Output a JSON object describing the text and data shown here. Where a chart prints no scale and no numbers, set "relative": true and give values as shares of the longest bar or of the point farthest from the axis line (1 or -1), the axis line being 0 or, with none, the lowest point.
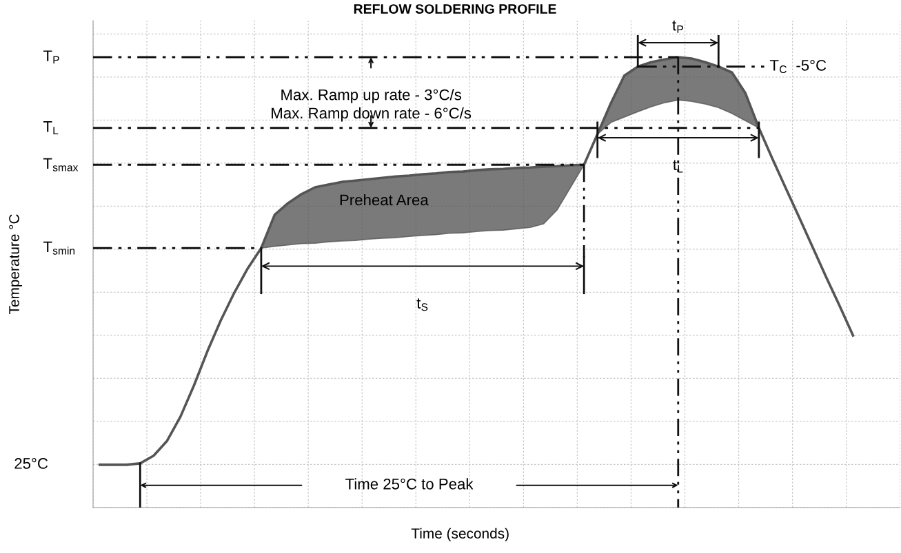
{
  "chart_data": {
    "type": "line",
    "title": "REFLOW SOLDERING PROFILE",
    "xlabel": "Time (seconds)",
    "ylabel": "Temperature °C",
    "relative": true,
    "grid": true,
    "categories": [
      null,
      null,
      null,
      null,
      null,
      null,
      null,
      null,
      null,
      null,
      null,
      null,
      null,
      null,
      null,
      null,
      null,
      null,
      null,
      null,
      null,
      null,
      null,
      null,
      null,
      null,
      null,
      null,
      null,
      null,
      null,
      null,
      null,
      null,
      null,
      null,
      null,
      null,
      null,
      null,
      null,
      null,
      null,
      null,
      null,
      null,
      null,
      null,
      null,
      null,
      null,
      null,
      null,
      null,
      null,
      null,
      null,
      null,
      null,
      null
    ],
    "series": [
      {
        "color": "#555555",
        "values": [
          0.095,
          0.095,
          0.095,
          0.098,
          0.115,
          0.148,
          0.202,
          0.271,
          0.347,
          0.416,
          0.477,
          0.531,
          0.576,
          0.65,
          0.676,
          0.696,
          0.711,
          0.717,
          0.723,
          0.726,
          0.729,
          0.732,
          0.735,
          0.737,
          0.74,
          0.742,
          0.745,
          0.746,
          0.749,
          0.751,
          0.752,
          0.754,
          0.755,
          0.757,
          0.758,
          0.76,
          0.761,
          0.829,
          0.898,
          0.959,
          0.979,
          0.989,
          0.995,
          1.0,
          0.997,
          0.989,
          0.979,
          0.966,
          0.92,
          0.843,
          0.775,
          0.709,
          0.644,
          0.578,
          0.512,
          0.448,
          0.382,
          null,
          null,
          null
        ],
        "lower": [
          null,
          null,
          null,
          null,
          null,
          null,
          null,
          null,
          null,
          null,
          null,
          null,
          0.576,
          0.58,
          0.583,
          0.586,
          0.587,
          0.59,
          0.592,
          0.593,
          0.596,
          0.598,
          0.599,
          0.602,
          0.604,
          0.606,
          0.609,
          0.61,
          0.613,
          0.615,
          0.616,
          0.619,
          0.622,
          0.63,
          0.661,
          0.711,
          0.761,
          0.829,
          0.855,
          0.867,
          0.879,
          0.89,
          0.899,
          0.905,
          0.902,
          0.896,
          0.888,
          0.875,
          0.859,
          0.843,
          null,
          null,
          null,
          null,
          null,
          null,
          null,
          null,
          null,
          null
        ],
        "upper": [
          null,
          null,
          null,
          null,
          null,
          null,
          null,
          null,
          null,
          null,
          null,
          null,
          0.576,
          0.65,
          0.676,
          0.696,
          0.711,
          0.717,
          0.723,
          0.726,
          0.729,
          0.732,
          0.735,
          0.737,
          0.74,
          0.742,
          0.745,
          0.746,
          0.749,
          0.751,
          0.752,
          0.754,
          0.755,
          0.757,
          0.758,
          0.76,
          0.761,
          0.829,
          0.898,
          0.959,
          0.979,
          0.989,
          0.995,
          1.0,
          0.997,
          0.989,
          0.979,
          0.966,
          0.92,
          0.843,
          null,
          null,
          null,
          null,
          null,
          null,
          null,
          null,
          null,
          null
        ]
      }
    ],
    "ref_lines": [
      {
        "axis": "y",
        "value": 1.0,
        "label": "T$_{P}$",
        "line_style": "dashdot",
        "color": "#111111"
      },
      {
        "axis": "y",
        "value": 0.979,
        "label": "T$_{C}$  -5°C",
        "line_style": "dashdot",
        "color": "#111111"
      },
      {
        "axis": "y",
        "value": 0.843,
        "label": "T$_{L}$",
        "line_style": "dashdot",
        "color": "#111111"
      },
      {
        "axis": "y",
        "value": 0.761,
        "label": "T$_{smax}$",
        "line_style": "dashdot",
        "color": "#111111"
      },
      {
        "axis": "y",
        "value": 0.576,
        "label": "T$_{smin}$",
        "line_style": "dashdot",
        "color": "#111111"
      }
    ],
    "annotations": [
      "Preheat Area",
      "Max. Ramp up rate - 3°C/s",
      "Max. Ramp down rate - 6°C/s",
      "t$_{S}$",
      "t$_{L}$",
      "t$_{P}$",
      "Time 25°C to Peak",
      "25°C"
    ]
  }
}
